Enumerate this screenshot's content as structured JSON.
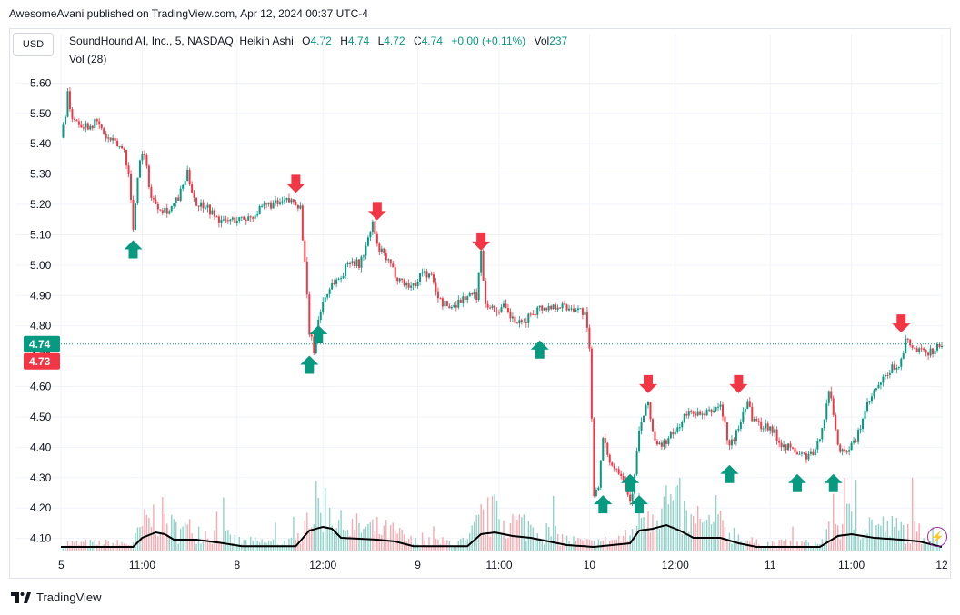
{
  "attribution": "AwesomeAvani published on TradingView.com, Apr 12, 2024 00:37 UTC-4",
  "currency": "USD",
  "legend": {
    "symbol": "SoundHound AI, Inc., 5, NASDAQ, Heikin Ashi",
    "o_label": "O",
    "o_value": "4.72",
    "h_label": "H",
    "h_value": "4.74",
    "l_label": "L",
    "l_value": "4.72",
    "c_label": "C",
    "c_value": "4.74",
    "change": "+0.00 (+0.11%)",
    "vol_label": "Vol",
    "vol_value": "237"
  },
  "volume_legend": "Vol (28)",
  "price_tags": {
    "current": "4.74",
    "previous": "4.73"
  },
  "brand": "TradingView",
  "colors": {
    "up": "#089981",
    "down": "#f23645",
    "up_volume": "#8fd3c8",
    "down_volume": "#f7a9b0",
    "grid": "#f0f3fa",
    "sma": "#000000"
  },
  "chart_data": {
    "type": "candlestick",
    "ylim": [
      4.06,
      5.64
    ],
    "y_ticks": [
      "5.60",
      "5.50",
      "5.40",
      "5.30",
      "5.20",
      "5.10",
      "5.00",
      "4.90",
      "4.80",
      "4.70",
      "4.60",
      "4.50",
      "4.40",
      "4.30",
      "4.20",
      "4.10"
    ],
    "x_ticks": [
      {
        "label": "5",
        "x": 0
      },
      {
        "label": "11:00",
        "x": 18
      },
      {
        "label": "8",
        "x": 39
      },
      {
        "label": "12:00",
        "x": 58
      },
      {
        "label": "9",
        "x": 79
      },
      {
        "label": "11:00",
        "x": 97
      },
      {
        "label": "10",
        "x": 117
      },
      {
        "label": "12:00",
        "x": 136
      },
      {
        "label": "11",
        "x": 157
      },
      {
        "label": "11:00",
        "x": 175
      },
      {
        "label": "12",
        "x": 195
      }
    ],
    "x_range": [
      0,
      195
    ],
    "price_path": [
      [
        0,
        5.42
      ],
      [
        1,
        5.5
      ],
      [
        1.5,
        5.58
      ],
      [
        2,
        5.5
      ],
      [
        4,
        5.47
      ],
      [
        6,
        5.46
      ],
      [
        8,
        5.47
      ],
      [
        10,
        5.42
      ],
      [
        12,
        5.4
      ],
      [
        14,
        5.38
      ],
      [
        15,
        5.3
      ],
      [
        16,
        5.12
      ],
      [
        17,
        5.3
      ],
      [
        18,
        5.38
      ],
      [
        19,
        5.32
      ],
      [
        20,
        5.22
      ],
      [
        22,
        5.19
      ],
      [
        24,
        5.18
      ],
      [
        26,
        5.22
      ],
      [
        28,
        5.3
      ],
      [
        30,
        5.2
      ],
      [
        32,
        5.2
      ],
      [
        34,
        5.16
      ],
      [
        36,
        5.14
      ],
      [
        38,
        5.15
      ],
      [
        40,
        5.15
      ],
      [
        42,
        5.16
      ],
      [
        44,
        5.18
      ],
      [
        46,
        5.2
      ],
      [
        48,
        5.2
      ],
      [
        50,
        5.21
      ],
      [
        52,
        5.21
      ],
      [
        53,
        5.19
      ],
      [
        54,
        5.0
      ],
      [
        55,
        4.78
      ],
      [
        56,
        4.72
      ],
      [
        57,
        4.82
      ],
      [
        58,
        4.88
      ],
      [
        60,
        4.94
      ],
      [
        62,
        4.96
      ],
      [
        64,
        5.02
      ],
      [
        66,
        5.0
      ],
      [
        68,
        5.08
      ],
      [
        69,
        5.14
      ],
      [
        70,
        5.06
      ],
      [
        72,
        5.02
      ],
      [
        74,
        4.97
      ],
      [
        76,
        4.94
      ],
      [
        78,
        4.93
      ],
      [
        80,
        4.98
      ],
      [
        82,
        4.96
      ],
      [
        84,
        4.88
      ],
      [
        86,
        4.86
      ],
      [
        88,
        4.88
      ],
      [
        90,
        4.9
      ],
      [
        92,
        4.9
      ],
      [
        93,
        5.04
      ],
      [
        94,
        4.88
      ],
      [
        96,
        4.85
      ],
      [
        98,
        4.86
      ],
      [
        100,
        4.82
      ],
      [
        102,
        4.8
      ],
      [
        104,
        4.84
      ],
      [
        106,
        4.86
      ],
      [
        108,
        4.86
      ],
      [
        110,
        4.87
      ],
      [
        112,
        4.86
      ],
      [
        114,
        4.86
      ],
      [
        116,
        4.84
      ],
      [
        117,
        4.72
      ],
      [
        118,
        4.25
      ],
      [
        119,
        4.28
      ],
      [
        120,
        4.42
      ],
      [
        122,
        4.34
      ],
      [
        124,
        4.32
      ],
      [
        125,
        4.28
      ],
      [
        126,
        4.22
      ],
      [
        127,
        4.3
      ],
      [
        128,
        4.46
      ],
      [
        129,
        4.5
      ],
      [
        130,
        4.55
      ],
      [
        131,
        4.45
      ],
      [
        132,
        4.4
      ],
      [
        134,
        4.42
      ],
      [
        136,
        4.45
      ],
      [
        138,
        4.5
      ],
      [
        140,
        4.52
      ],
      [
        142,
        4.5
      ],
      [
        144,
        4.52
      ],
      [
        146,
        4.54
      ],
      [
        148,
        4.4
      ],
      [
        150,
        4.46
      ],
      [
        151,
        4.52
      ],
      [
        152,
        4.56
      ],
      [
        153,
        4.5
      ],
      [
        155,
        4.47
      ],
      [
        157,
        4.47
      ],
      [
        159,
        4.42
      ],
      [
        161,
        4.4
      ],
      [
        163,
        4.38
      ],
      [
        165,
        4.37
      ],
      [
        167,
        4.38
      ],
      [
        169,
        4.5
      ],
      [
        170,
        4.58
      ],
      [
        171,
        4.52
      ],
      [
        172,
        4.4
      ],
      [
        174,
        4.39
      ],
      [
        176,
        4.42
      ],
      [
        178,
        4.52
      ],
      [
        180,
        4.58
      ],
      [
        182,
        4.62
      ],
      [
        184,
        4.66
      ],
      [
        186,
        4.68
      ],
      [
        187,
        4.75
      ],
      [
        189,
        4.72
      ],
      [
        191,
        4.71
      ],
      [
        193,
        4.72
      ],
      [
        195,
        4.74
      ]
    ],
    "sma_volume_shape": [
      [
        0,
        0.1
      ],
      [
        16,
        0.1
      ],
      [
        18,
        0.35
      ],
      [
        21,
        0.5
      ],
      [
        23,
        0.45
      ],
      [
        25,
        0.3
      ],
      [
        30,
        0.3
      ],
      [
        36,
        0.2
      ],
      [
        40,
        0.12
      ],
      [
        52,
        0.12
      ],
      [
        55,
        0.55
      ],
      [
        58,
        0.65
      ],
      [
        60,
        0.6
      ],
      [
        62,
        0.35
      ],
      [
        70,
        0.3
      ],
      [
        74,
        0.25
      ],
      [
        78,
        0.12
      ],
      [
        90,
        0.12
      ],
      [
        93,
        0.45
      ],
      [
        96,
        0.5
      ],
      [
        100,
        0.4
      ],
      [
        104,
        0.35
      ],
      [
        108,
        0.25
      ],
      [
        112,
        0.15
      ],
      [
        118,
        0.1
      ],
      [
        126,
        0.2
      ],
      [
        128,
        0.55
      ],
      [
        131,
        0.6
      ],
      [
        134,
        0.7
      ],
      [
        137,
        0.55
      ],
      [
        140,
        0.35
      ],
      [
        146,
        0.35
      ],
      [
        150,
        0.2
      ],
      [
        154,
        0.1
      ],
      [
        168,
        0.1
      ],
      [
        172,
        0.4
      ],
      [
        175,
        0.45
      ],
      [
        180,
        0.35
      ],
      [
        186,
        0.3
      ],
      [
        190,
        0.25
      ],
      [
        195,
        0.1
      ]
    ],
    "signals": [
      {
        "type": "buy",
        "x": 16,
        "price": 5.1
      },
      {
        "type": "sell",
        "x": 52,
        "price": 5.22
      },
      {
        "type": "buy",
        "x": 55,
        "price": 4.72
      },
      {
        "type": "buy",
        "x": 57,
        "price": 4.82
      },
      {
        "type": "sell",
        "x": 70,
        "price": 5.13
      },
      {
        "type": "sell",
        "x": 93,
        "price": 5.03
      },
      {
        "type": "buy",
        "x": 106,
        "price": 4.77
      },
      {
        "type": "buy",
        "x": 120,
        "price": 4.26
      },
      {
        "type": "buy",
        "x": 126,
        "price": 4.33
      },
      {
        "type": "buy",
        "x": 128,
        "price": 4.26
      },
      {
        "type": "sell",
        "x": 130,
        "price": 4.56
      },
      {
        "type": "sell",
        "x": 150,
        "price": 4.56
      },
      {
        "type": "buy",
        "x": 148,
        "price": 4.36
      },
      {
        "type": "buy",
        "x": 163,
        "price": 4.33
      },
      {
        "type": "buy",
        "x": 171,
        "price": 4.33
      },
      {
        "type": "sell",
        "x": 186,
        "price": 4.76
      }
    ]
  }
}
